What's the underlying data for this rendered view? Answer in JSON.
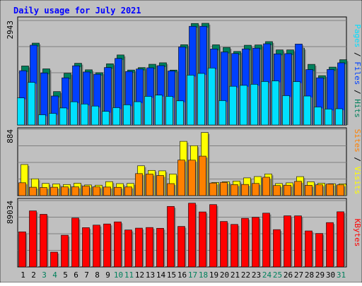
{
  "chart_data": {
    "type": "bar",
    "title": "Daily usage for July 2021",
    "categories": [
      "1",
      "2",
      "3",
      "4",
      "5",
      "6",
      "7",
      "8",
      "9",
      "10",
      "11",
      "12",
      "13",
      "14",
      "15",
      "16",
      "17",
      "18",
      "19",
      "20",
      "21",
      "22",
      "23",
      "24",
      "25",
      "26",
      "27",
      "28",
      "29",
      "30",
      "31"
    ],
    "weekend_days": [
      "3",
      "4",
      "10",
      "11",
      "17",
      "18",
      "24",
      "25",
      "31"
    ],
    "panels": [
      {
        "name": "pages-files-hits",
        "ymax_label": "2943",
        "ylim": [
          0,
          2943
        ],
        "side_label_parts": [
          {
            "text": "Pages",
            "color": "#00e0ff"
          },
          {
            "text": " / ",
            "color": "#000000"
          },
          {
            "text": "Files",
            "color": "#0040ff"
          },
          {
            "text": " / ",
            "color": "#000000"
          },
          {
            "text": "Hits",
            "color": "#00805c"
          }
        ],
        "series": [
          {
            "name": "Hits",
            "color": "#00805c",
            "values": [
              1662,
              2306,
              1581,
              941,
              1456,
              1738,
              1554,
              1473,
              1724,
              1972,
              1548,
              1617,
              1710,
              1752,
              1547,
              2261,
              2859,
              2864,
              2258,
              2185,
              2071,
              2246,
              2254,
              2348,
              2114,
              2114,
              2164,
              1708,
              1390,
              1630,
              1839
            ]
          },
          {
            "name": "Files",
            "color": "#0040ff",
            "values": [
              1529,
              2248,
              1467,
              816,
              1328,
              1667,
              1493,
              1430,
              1619,
              1874,
              1507,
              1576,
              1611,
              1672,
              1521,
              2197,
              2780,
              2780,
              2142,
              2055,
              2013,
              2143,
              2164,
              2287,
              2003,
              2009,
              2279,
              1560,
              1329,
              1564,
              1751
            ]
          },
          {
            "name": "Pages",
            "color": "#00e0ff",
            "values": [
              763,
              1201,
              288,
              327,
              479,
              654,
              591,
              533,
              384,
              488,
              569,
              655,
              806,
              841,
              806,
              680,
              1404,
              1452,
              1605,
              687,
              1090,
              1116,
              1146,
              1224,
              1241,
              826,
              1221,
              815,
              507,
              449,
              457
            ]
          }
        ]
      },
      {
        "name": "sites-visits",
        "ymax_label": "884",
        "ylim": [
          0,
          884
        ],
        "side_label_parts": [
          {
            "text": "Sites",
            "color": "#ff8000"
          },
          {
            "text": " / ",
            "color": "#000000"
          },
          {
            "text": "Visits",
            "color": "#ffff00"
          }
        ],
        "series": [
          {
            "name": "Visits",
            "color": "#ffff00",
            "values": [
              414,
              224,
              162,
              155,
              148,
              165,
              142,
              139,
              186,
              160,
              162,
              397,
              336,
              330,
              287,
              723,
              665,
              840,
              175,
              185,
              194,
              236,
              254,
              289,
              161,
              170,
              253,
              184,
              165,
              158,
              157
            ]
          },
          {
            "name": "Sites",
            "color": "#ff8000",
            "values": [
              171,
              112,
              108,
              112,
              116,
              116,
              126,
              116,
              114,
              111,
              115,
              293,
              287,
              268,
              160,
              473,
              472,
              526,
              168,
              177,
              146,
              149,
              162,
              245,
              134,
              139,
              190,
              137,
              144,
              155,
              143
            ]
          }
        ]
      },
      {
        "name": "kbytes",
        "ymax_label": "89034",
        "ylim": [
          0,
          89034
        ],
        "side_label_parts": [
          {
            "text": "KBytes",
            "color": "#ff0000"
          }
        ],
        "series": [
          {
            "name": "KBytes",
            "color": "#ff0000",
            "values": [
              47103,
              75211,
              70591,
              19877,
              42563,
              65587,
              52706,
              56103,
              57651,
              60451,
              49574,
              52052,
              52892,
              51854,
              81203,
              54350,
              85512,
              73809,
              83640,
              61004,
              57049,
              65207,
              66603,
              72152,
              50044,
              68600,
              68503,
              48307,
              44903,
              59500,
              74002
            ]
          }
        ]
      }
    ]
  }
}
